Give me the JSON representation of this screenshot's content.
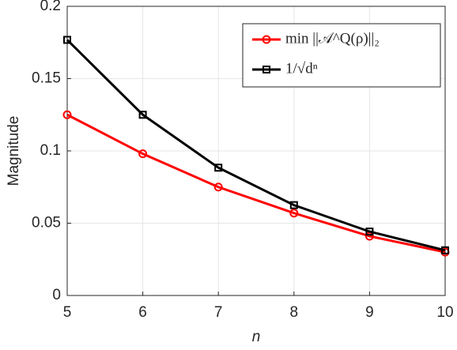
{
  "chart_data": {
    "type": "line",
    "x_label": "n",
    "y_label": "Magnitude",
    "x": [
      5,
      6,
      7,
      8,
      9,
      10
    ],
    "series": [
      {
        "name": "min ||𝒜^Q(ρ)||₂",
        "color": "#ff0000",
        "marker": "circle",
        "values": [
          0.125,
          0.098,
          0.075,
          0.057,
          0.041,
          0.03
        ]
      },
      {
        "name": "1/√dⁿ",
        "color": "#000000",
        "marker": "square",
        "values": [
          0.1768,
          0.125,
          0.0884,
          0.0625,
          0.0442,
          0.03125
        ]
      }
    ],
    "xlim": [
      5,
      10
    ],
    "xticks": [
      5,
      6,
      7,
      8,
      9,
      10
    ],
    "ylim": [
      0,
      0.2
    ],
    "yticks": [
      0,
      0.05,
      0.1,
      0.15,
      0.2
    ],
    "grid": true,
    "legend": "northeast"
  }
}
